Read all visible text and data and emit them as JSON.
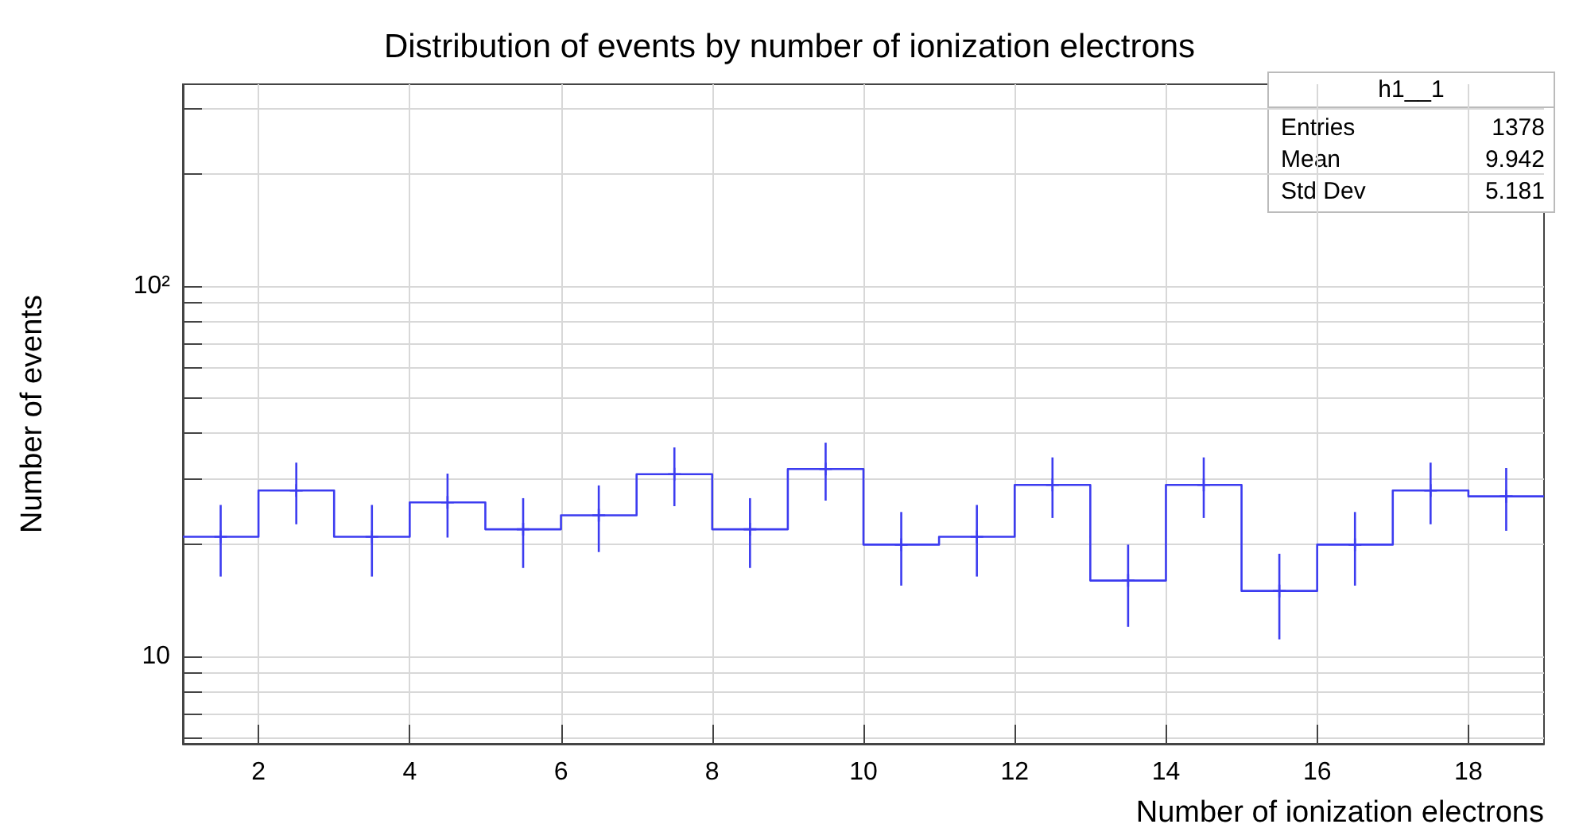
{
  "chart_data": {
    "type": "histogram",
    "title": "Distribution of events by number of ionization electrons",
    "xlabel": "Number of ionization electrons",
    "ylabel": "Number of events",
    "bins": [
      1,
      2,
      3,
      4,
      5,
      6,
      7,
      8,
      9,
      10,
      11,
      12,
      13,
      14,
      15,
      16,
      17,
      18,
      19
    ],
    "series": [
      {
        "color": "#3c3cf0",
        "values": [
          21,
          28,
          21,
          26,
          22,
          24,
          31,
          22,
          32,
          20,
          21,
          29,
          16,
          29,
          15,
          20,
          28,
          27
        ]
      },
      {
        "type": "scatter",
        "color": "#3c3cf0",
        "x": [
          1.5,
          2.5,
          3.5,
          4.5,
          5.5,
          6.5,
          7.5,
          8.5,
          9.5,
          10.5,
          11.5,
          12.5,
          13.5,
          14.5,
          15.5,
          16.5,
          17.5,
          18.5
        ],
        "values": [
          21,
          28,
          21,
          26,
          22,
          24,
          31,
          22,
          32,
          20,
          21,
          29,
          16,
          29,
          15,
          20,
          28,
          27
        ],
        "errors": [
          4.6,
          5.3,
          4.6,
          5.1,
          4.7,
          4.9,
          5.6,
          4.7,
          5.7,
          4.5,
          4.6,
          5.4,
          4,
          5.4,
          3.9,
          4.5,
          5.3,
          5.2
        ]
      }
    ],
    "marker": "cross",
    "log": "y",
    "xlim": [
      1,
      19
    ],
    "xticks": [
      2,
      4,
      6,
      8,
      10,
      12,
      14,
      16,
      18
    ],
    "ylim": [
      5.8,
      350
    ],
    "yticks": [
      {
        "value": 6,
        "label": null
      },
      {
        "value": 7,
        "label": null
      },
      {
        "value": 8,
        "label": null
      },
      {
        "value": 9,
        "label": null
      },
      10,
      {
        "value": 20,
        "label": null
      },
      {
        "value": 30,
        "label": null
      },
      {
        "value": 40,
        "label": null
      },
      {
        "value": 50,
        "label": null
      },
      {
        "value": 60,
        "label": null
      },
      {
        "value": 70,
        "label": null
      },
      {
        "value": 80,
        "label": null
      },
      {
        "value": 90,
        "label": null
      },
      {
        "value": 100,
        "label": "10²"
      },
      {
        "value": 200,
        "label": null
      },
      {
        "value": 300,
        "label": null
      }
    ],
    "grid": true,
    "annotations": [
      "h1__1",
      "Entries",
      "1378",
      "Mean",
      "9.942",
      "Std Dev",
      "5.181"
    ]
  }
}
